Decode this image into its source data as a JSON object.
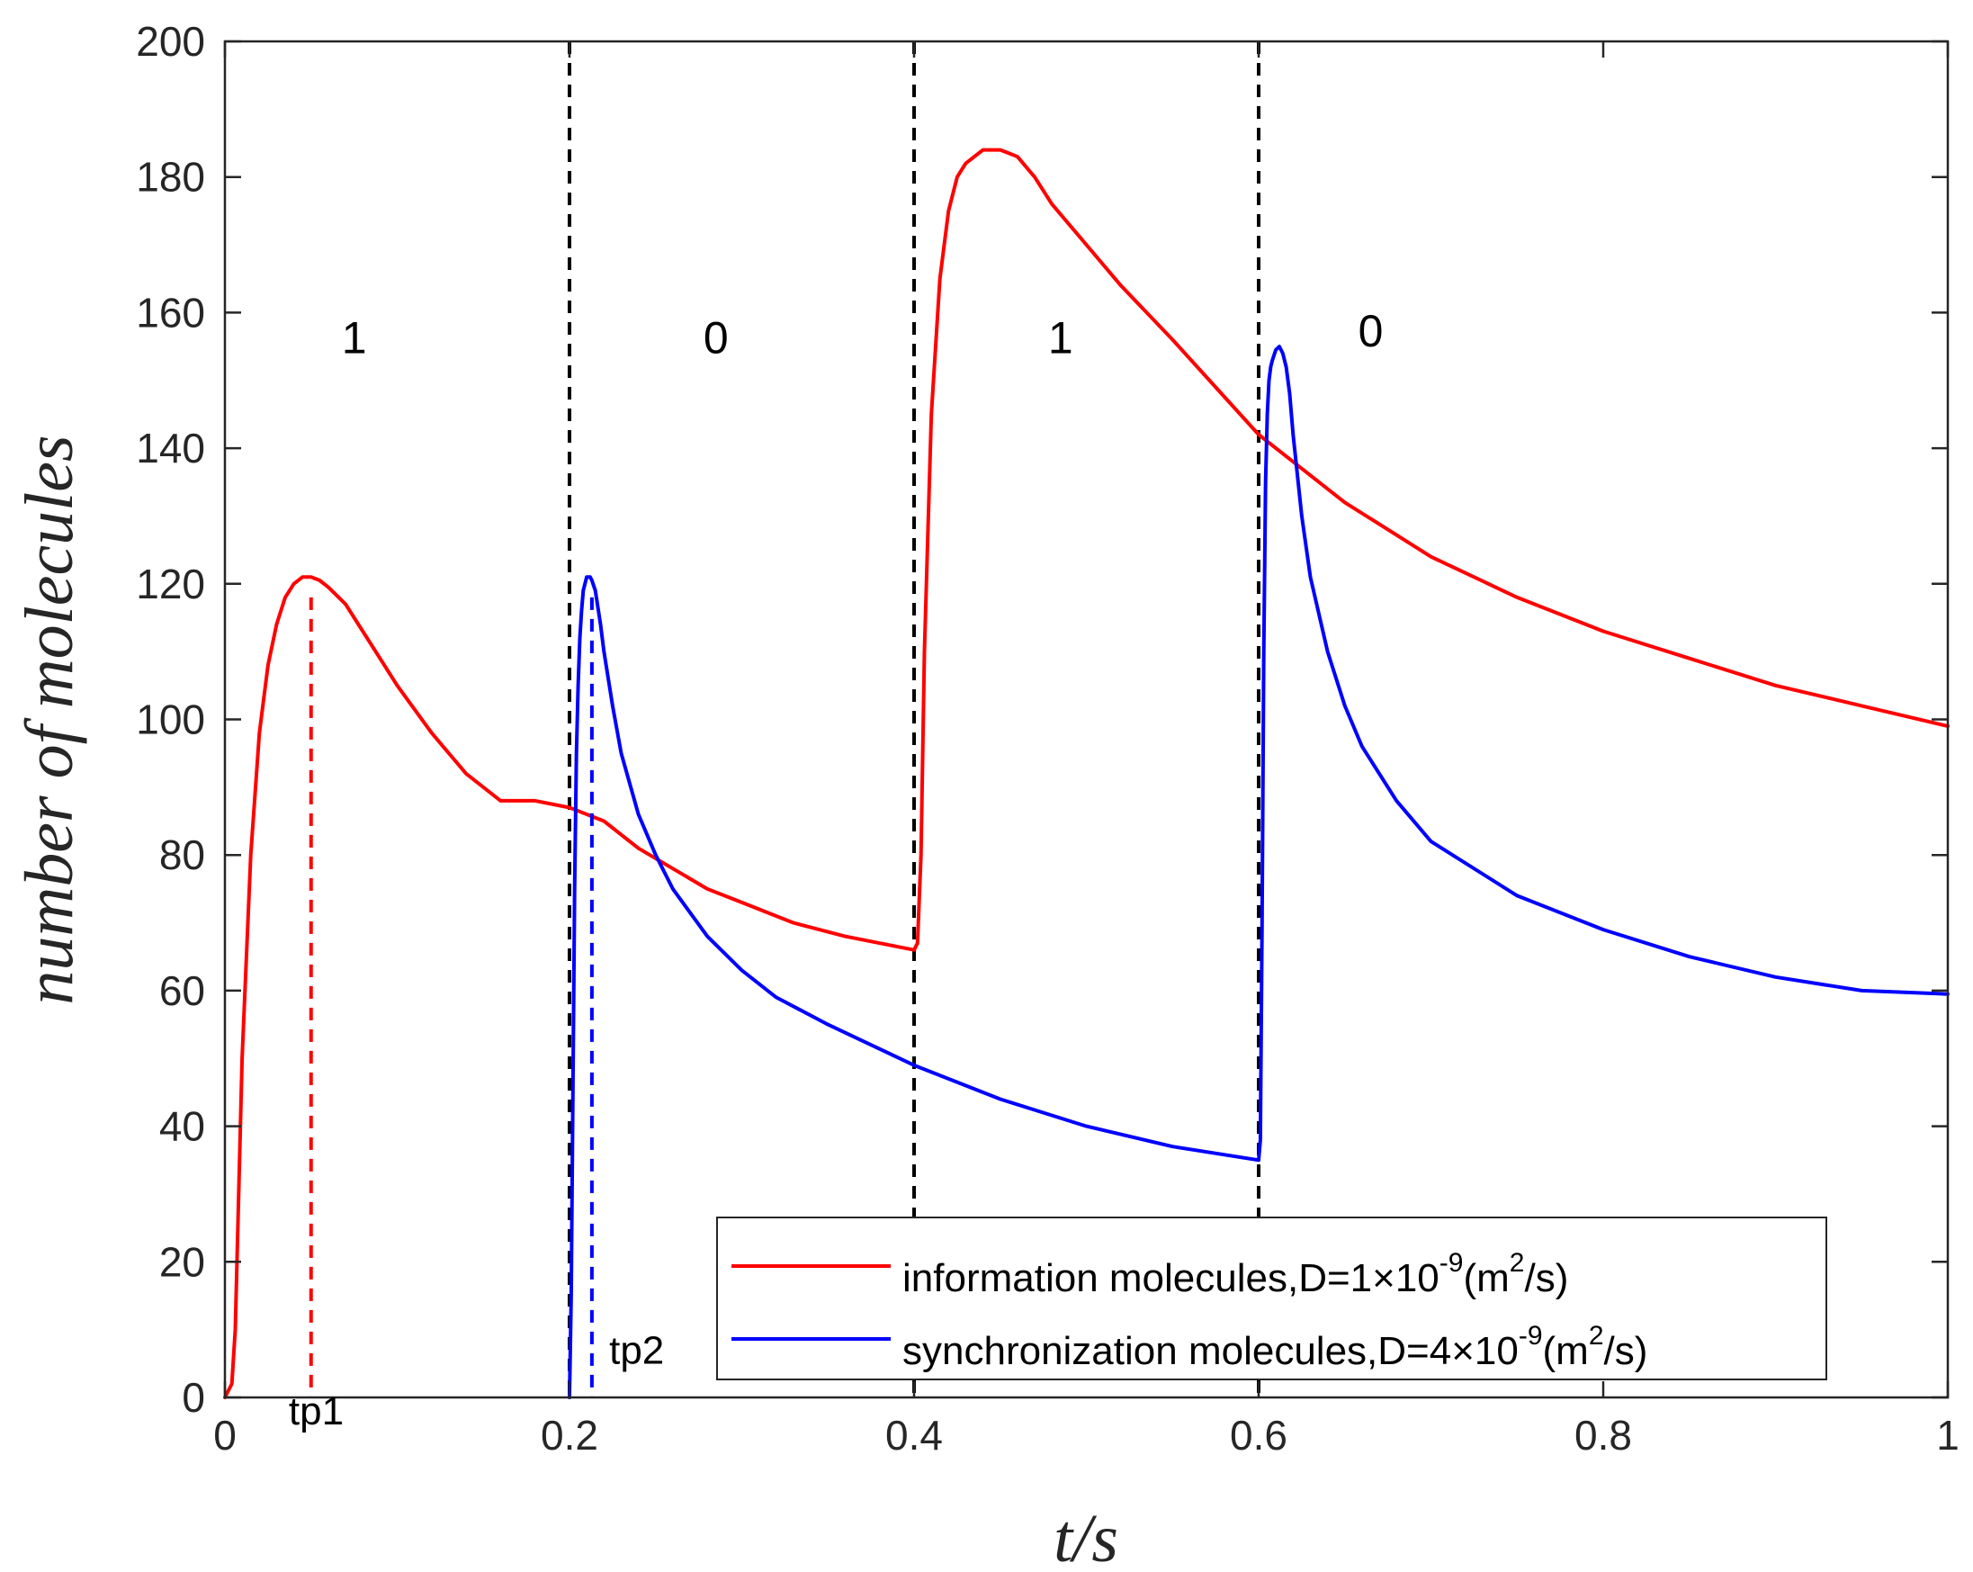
{
  "chart_data": {
    "type": "line",
    "xlabel": "t/s",
    "ylabel": "number of molecules",
    "xlim": [
      0,
      1
    ],
    "ylim": [
      0,
      200
    ],
    "xticks": [
      0,
      0.2,
      0.4,
      0.6,
      0.8,
      1
    ],
    "xtick_labels": [
      "0",
      "0.2",
      "0.4",
      "0.6",
      "0.8",
      "1"
    ],
    "yticks": [
      0,
      20,
      40,
      60,
      80,
      100,
      120,
      140,
      160,
      180,
      200
    ],
    "ytick_labels": [
      "0",
      "20",
      "40",
      "60",
      "80",
      "100",
      "120",
      "140",
      "160",
      "180",
      "200"
    ],
    "series": [
      {
        "name": "information molecules",
        "legend_prefix": "information molecules,D=1×10",
        "legend_exp": "-9",
        "legend_mid": "(m",
        "legend_exp2": "2",
        "legend_suffix": "/s)",
        "color": "#ff0000",
        "x": [
          0.0,
          0.004,
          0.006,
          0.008,
          0.01,
          0.015,
          0.02,
          0.025,
          0.03,
          0.035,
          0.04,
          0.045,
          0.05,
          0.055,
          0.06,
          0.07,
          0.08,
          0.09,
          0.1,
          0.12,
          0.14,
          0.16,
          0.18,
          0.2,
          0.22,
          0.24,
          0.26,
          0.28,
          0.3,
          0.33,
          0.36,
          0.4,
          0.402,
          0.404,
          0.406,
          0.41,
          0.415,
          0.42,
          0.425,
          0.43,
          0.435,
          0.44,
          0.445,
          0.45,
          0.455,
          0.46,
          0.47,
          0.48,
          0.5,
          0.52,
          0.55,
          0.6,
          0.65,
          0.7,
          0.75,
          0.8,
          0.85,
          0.9,
          0.95,
          1.0
        ],
        "y": [
          0,
          2,
          10,
          30,
          50,
          80,
          98,
          108,
          114,
          118,
          120,
          121,
          121,
          120.5,
          119.5,
          117,
          113,
          109,
          105,
          98,
          92,
          88,
          88,
          87,
          85,
          81,
          78,
          75,
          73,
          70,
          68,
          66,
          67,
          80,
          110,
          145,
          165,
          175,
          180,
          182,
          183,
          184,
          184,
          184,
          183.5,
          183,
          180,
          176,
          170,
          164,
          156,
          142,
          132,
          124,
          118,
          113,
          109,
          105,
          102,
          99
        ]
      },
      {
        "name": "synchronization molecules",
        "legend_prefix": "synchronization molecules,D=4×10",
        "legend_exp": "-9",
        "legend_mid": "(m",
        "legend_exp2": "2",
        "legend_suffix": "/s)",
        "color": "#0000ff",
        "x": [
          0.2,
          0.201,
          0.202,
          0.203,
          0.204,
          0.205,
          0.206,
          0.207,
          0.208,
          0.209,
          0.21,
          0.211,
          0.212,
          0.213,
          0.215,
          0.218,
          0.22,
          0.225,
          0.23,
          0.24,
          0.25,
          0.26,
          0.28,
          0.3,
          0.32,
          0.35,
          0.4,
          0.45,
          0.5,
          0.55,
          0.6,
          0.601,
          0.602,
          0.603,
          0.604,
          0.605,
          0.606,
          0.607,
          0.608,
          0.61,
          0.612,
          0.614,
          0.616,
          0.618,
          0.62,
          0.625,
          0.63,
          0.64,
          0.65,
          0.66,
          0.68,
          0.7,
          0.75,
          0.8,
          0.85,
          0.9,
          0.95,
          1.0
        ],
        "y": [
          0,
          15,
          45,
          75,
          95,
          105,
          112,
          116,
          119,
          120,
          121,
          121,
          121,
          120.5,
          119,
          114,
          110,
          102,
          95,
          86,
          80,
          75,
          68,
          63,
          59,
          55,
          49,
          44,
          40,
          37,
          35,
          38,
          70,
          110,
          135,
          145,
          150,
          152,
          153,
          154.5,
          155,
          154,
          152,
          148,
          142,
          130,
          121,
          110,
          102,
          96,
          88,
          82,
          74,
          69,
          65,
          62,
          60,
          59.5
        ]
      }
    ],
    "boundaries": [
      0.2,
      0.4,
      0.6
    ],
    "bit_labels": [
      {
        "text": "1",
        "x": 0.075,
        "y": 154
      },
      {
        "text": "0",
        "x": 0.285,
        "y": 154
      },
      {
        "text": "1",
        "x": 0.485,
        "y": 154
      },
      {
        "text": "0",
        "x": 0.665,
        "y": 155
      }
    ],
    "peak_markers": [
      {
        "name": "tp1",
        "x": 0.05,
        "y": 118,
        "color": "#ff0000",
        "label_x": 0.053,
        "label_y": -4
      },
      {
        "name": "tp2",
        "x": 0.213,
        "y": 118,
        "color": "#0000ff",
        "label_x": 0.239,
        "label_y": 5
      }
    ],
    "legend": "bottom-right"
  }
}
